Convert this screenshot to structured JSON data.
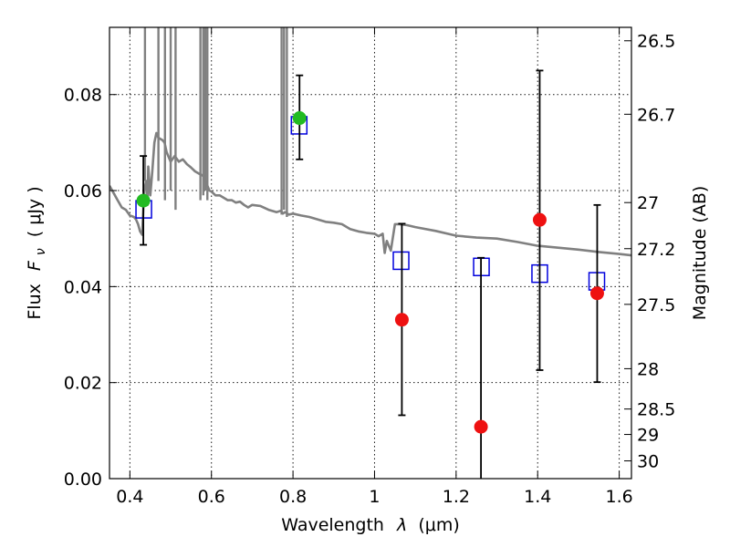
{
  "chart_data": {
    "type": "scatter",
    "xlabel_text": "Wavelength",
    "xlabel_symbol": "λ",
    "xlabel_unit": "(μm)",
    "ylabel_text": "Flux",
    "ylabel_symbol": "F",
    "ylabel_symbol_sub": "ν",
    "ylabel_unit": "( μJy )",
    "y2label": "Magnitude (AB)",
    "xlim": [
      0.35,
      1.63
    ],
    "ylim": [
      0.0,
      0.094
    ],
    "grid": true,
    "x_ticks": [
      0.4,
      0.6,
      0.8,
      1.0,
      1.2,
      1.4,
      1.6
    ],
    "x_tick_labels": [
      "0.4",
      "0.6",
      "0.8",
      "1",
      "1.2",
      "1.4",
      "1.6"
    ],
    "y_ticks": [
      0.0,
      0.02,
      0.04,
      0.06,
      0.08
    ],
    "y_tick_labels": [
      "0.00",
      "0.02",
      "0.04",
      "0.06",
      "0.08"
    ],
    "y2_ticks": [
      {
        "label": "26.5",
        "flux": 0.0912
      },
      {
        "label": "26.7",
        "flux": 0.0759
      },
      {
        "label": "27",
        "flux": 0.0575
      },
      {
        "label": "27.2",
        "flux": 0.0479
      },
      {
        "label": "27.5",
        "flux": 0.0363
      },
      {
        "label": "28",
        "flux": 0.0229
      },
      {
        "label": "28.5",
        "flux": 0.0145
      },
      {
        "label": "29",
        "flux": 0.0092
      },
      {
        "label": "30",
        "flux": 0.0037
      }
    ],
    "series": [
      {
        "kind": "model_sed",
        "color": "#808080",
        "x": [
          0.35,
          0.36,
          0.37,
          0.38,
          0.39,
          0.4,
          0.41,
          0.415,
          0.42,
          0.425,
          0.43,
          0.435,
          0.44,
          0.443,
          0.445,
          0.448,
          0.45,
          0.455,
          0.46,
          0.465,
          0.47,
          0.48,
          0.485,
          0.49,
          0.5,
          0.51,
          0.52,
          0.53,
          0.54,
          0.55,
          0.56,
          0.57,
          0.575,
          0.58,
          0.585,
          0.59,
          0.595,
          0.6,
          0.61,
          0.62,
          0.63,
          0.64,
          0.65,
          0.66,
          0.67,
          0.68,
          0.69,
          0.7,
          0.72,
          0.74,
          0.76,
          0.77,
          0.775,
          0.78,
          0.79,
          0.8,
          0.81,
          0.82,
          0.84,
          0.86,
          0.88,
          0.9,
          0.92,
          0.94,
          0.96,
          0.98,
          1.0,
          1.01,
          1.02,
          1.025,
          1.03,
          1.04,
          1.05,
          1.06,
          1.08,
          1.1,
          1.15,
          1.2,
          1.25,
          1.3,
          1.35,
          1.4,
          1.45,
          1.5,
          1.55,
          1.6,
          1.63
        ],
        "y": [
          0.061,
          0.0595,
          0.058,
          0.0565,
          0.056,
          0.0548,
          0.0545,
          0.054,
          0.053,
          0.0515,
          0.0508,
          0.06,
          0.062,
          0.057,
          0.065,
          0.0615,
          0.059,
          0.064,
          0.07,
          0.072,
          0.071,
          0.0705,
          0.07,
          0.068,
          0.066,
          0.0672,
          0.066,
          0.0665,
          0.0655,
          0.0648,
          0.064,
          0.0635,
          0.0633,
          0.063,
          0.062,
          0.061,
          0.06,
          0.0598,
          0.059,
          0.059,
          0.0585,
          0.058,
          0.058,
          0.0575,
          0.0577,
          0.057,
          0.0565,
          0.057,
          0.0568,
          0.056,
          0.0555,
          0.0558,
          0.0552,
          0.0555,
          0.055,
          0.0552,
          0.055,
          0.0548,
          0.0545,
          0.054,
          0.0535,
          0.0533,
          0.053,
          0.052,
          0.0515,
          0.0512,
          0.051,
          0.0505,
          0.051,
          0.047,
          0.0495,
          0.0475,
          0.053,
          0.053,
          0.0528,
          0.0524,
          0.0516,
          0.0506,
          0.0502,
          0.05,
          0.0493,
          0.0485,
          0.0481,
          0.0477,
          0.0472,
          0.0468,
          0.0465
        ]
      },
      {
        "kind": "emission_lines",
        "color": "#808080",
        "lines": [
          {
            "x": 0.437,
            "ymin": 0.062
          },
          {
            "x": 0.47,
            "ymin": 0.062
          },
          {
            "x": 0.486,
            "ymin": 0.058
          },
          {
            "x": 0.5,
            "ymin": 0.06
          },
          {
            "x": 0.512,
            "ymin": 0.056
          },
          {
            "x": 0.573,
            "ymin": 0.058
          },
          {
            "x": 0.58,
            "ymin": 0.059
          },
          {
            "x": 0.585,
            "ymin": 0.06
          },
          {
            "x": 0.59,
            "ymin": 0.058
          },
          {
            "x": 0.772,
            "ymin": 0.055
          },
          {
            "x": 0.778,
            "ymin": 0.056
          },
          {
            "x": 0.785,
            "ymin": 0.0545
          }
        ]
      },
      {
        "kind": "model_photometry",
        "marker": "open-square",
        "color": "#0000dd",
        "x": [
          0.434,
          0.815,
          1.065,
          1.262,
          1.405,
          1.545
        ],
        "y": [
          0.0561,
          0.0736,
          0.0454,
          0.0441,
          0.0427,
          0.0411
        ]
      },
      {
        "kind": "detections",
        "marker": "filled-circle",
        "color": "#22bb22",
        "x": [
          0.433,
          0.816
        ],
        "y": [
          0.0579,
          0.0751
        ],
        "err_low": [
          0.0487,
          0.0665
        ],
        "err_high": [
          0.0672,
          0.084
        ]
      },
      {
        "kind": "non_detections",
        "marker": "filled-circle",
        "color": "#ee1111",
        "x": [
          1.067,
          1.261,
          1.405,
          1.546
        ],
        "y": [
          0.0331,
          0.0108,
          0.0539,
          0.0386
        ],
        "err_low": [
          0.0132,
          0.0,
          0.0226,
          0.0201
        ],
        "err_high": [
          0.0531,
          0.046,
          0.085,
          0.057
        ]
      }
    ]
  }
}
